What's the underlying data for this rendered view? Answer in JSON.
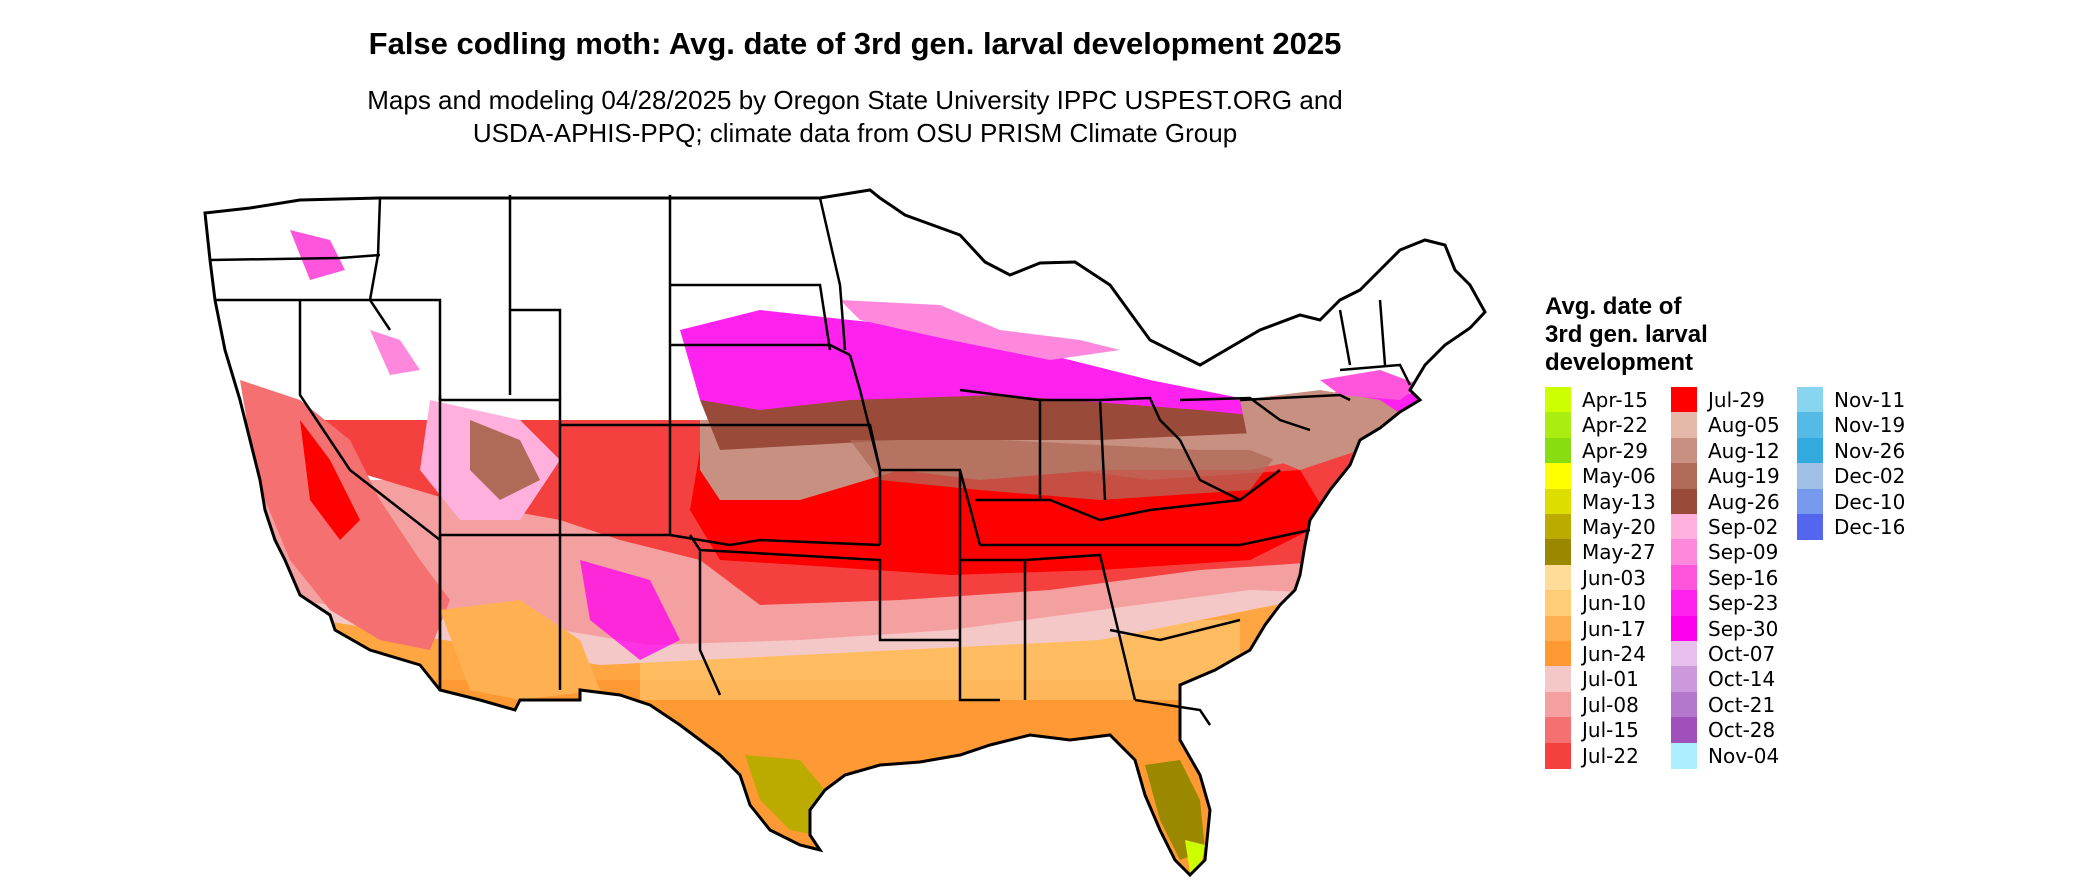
{
  "title": "False codling moth: Avg. date of 3rd gen. larval development 2025",
  "subtitle_line1": "Maps and modeling 04/28/2025 by Oregon State University IPPC USPEST.ORG and",
  "subtitle_line2": "USDA-APHIS-PPQ; climate data from OSU PRISM Climate Group",
  "legend": {
    "title_lines": [
      "Avg. date of",
      "3rd gen. larval",
      "development"
    ],
    "items": [
      {
        "label": "Apr-15",
        "color": "#ccff00"
      },
      {
        "label": "Apr-22",
        "color": "#aaee11"
      },
      {
        "label": "Apr-29",
        "color": "#88dd11"
      },
      {
        "label": "May-06",
        "color": "#ffff00"
      },
      {
        "label": "May-13",
        "color": "#dddd00"
      },
      {
        "label": "May-20",
        "color": "#bbaa00"
      },
      {
        "label": "May-27",
        "color": "#998800"
      },
      {
        "label": "Jun-03",
        "color": "#ffdd99"
      },
      {
        "label": "Jun-10",
        "color": "#ffcc77"
      },
      {
        "label": "Jun-17",
        "color": "#ffb050"
      },
      {
        "label": "Jun-24",
        "color": "#ff9933"
      },
      {
        "label": "Jul-01",
        "color": "#f5c8c8"
      },
      {
        "label": "Jul-08",
        "color": "#f5a0a0"
      },
      {
        "label": "Jul-15",
        "color": "#f57070"
      },
      {
        "label": "Jul-22",
        "color": "#f54040"
      },
      {
        "label": "Jul-29",
        "color": "#ff0000"
      },
      {
        "label": "Aug-05",
        "color": "#e5b8aa"
      },
      {
        "label": "Aug-12",
        "color": "#c89080"
      },
      {
        "label": "Aug-19",
        "color": "#b06a58"
      },
      {
        "label": "Aug-26",
        "color": "#9a4a38"
      },
      {
        "label": "Sep-02",
        "color": "#ffb0dd"
      },
      {
        "label": "Sep-09",
        "color": "#ff88dd"
      },
      {
        "label": "Sep-16",
        "color": "#ff55dd"
      },
      {
        "label": "Sep-23",
        "color": "#ff22ee"
      },
      {
        "label": "Sep-30",
        "color": "#ff00ee"
      },
      {
        "label": "Oct-07",
        "color": "#e8c0ee"
      },
      {
        "label": "Oct-14",
        "color": "#cc99dd"
      },
      {
        "label": "Oct-21",
        "color": "#b577cc"
      },
      {
        "label": "Oct-28",
        "color": "#a050bb"
      },
      {
        "label": "Nov-04",
        "color": "#aaeeff"
      },
      {
        "label": "Nov-11",
        "color": "#88d5f0"
      },
      {
        "label": "Nov-19",
        "color": "#55bbe6"
      },
      {
        "label": "Nov-26",
        "color": "#33aadd"
      },
      {
        "label": "Dec-02",
        "color": "#a0c0e8"
      },
      {
        "label": "Dec-10",
        "color": "#7799ee"
      },
      {
        "label": "Dec-16",
        "color": "#5566ee"
      }
    ]
  }
}
